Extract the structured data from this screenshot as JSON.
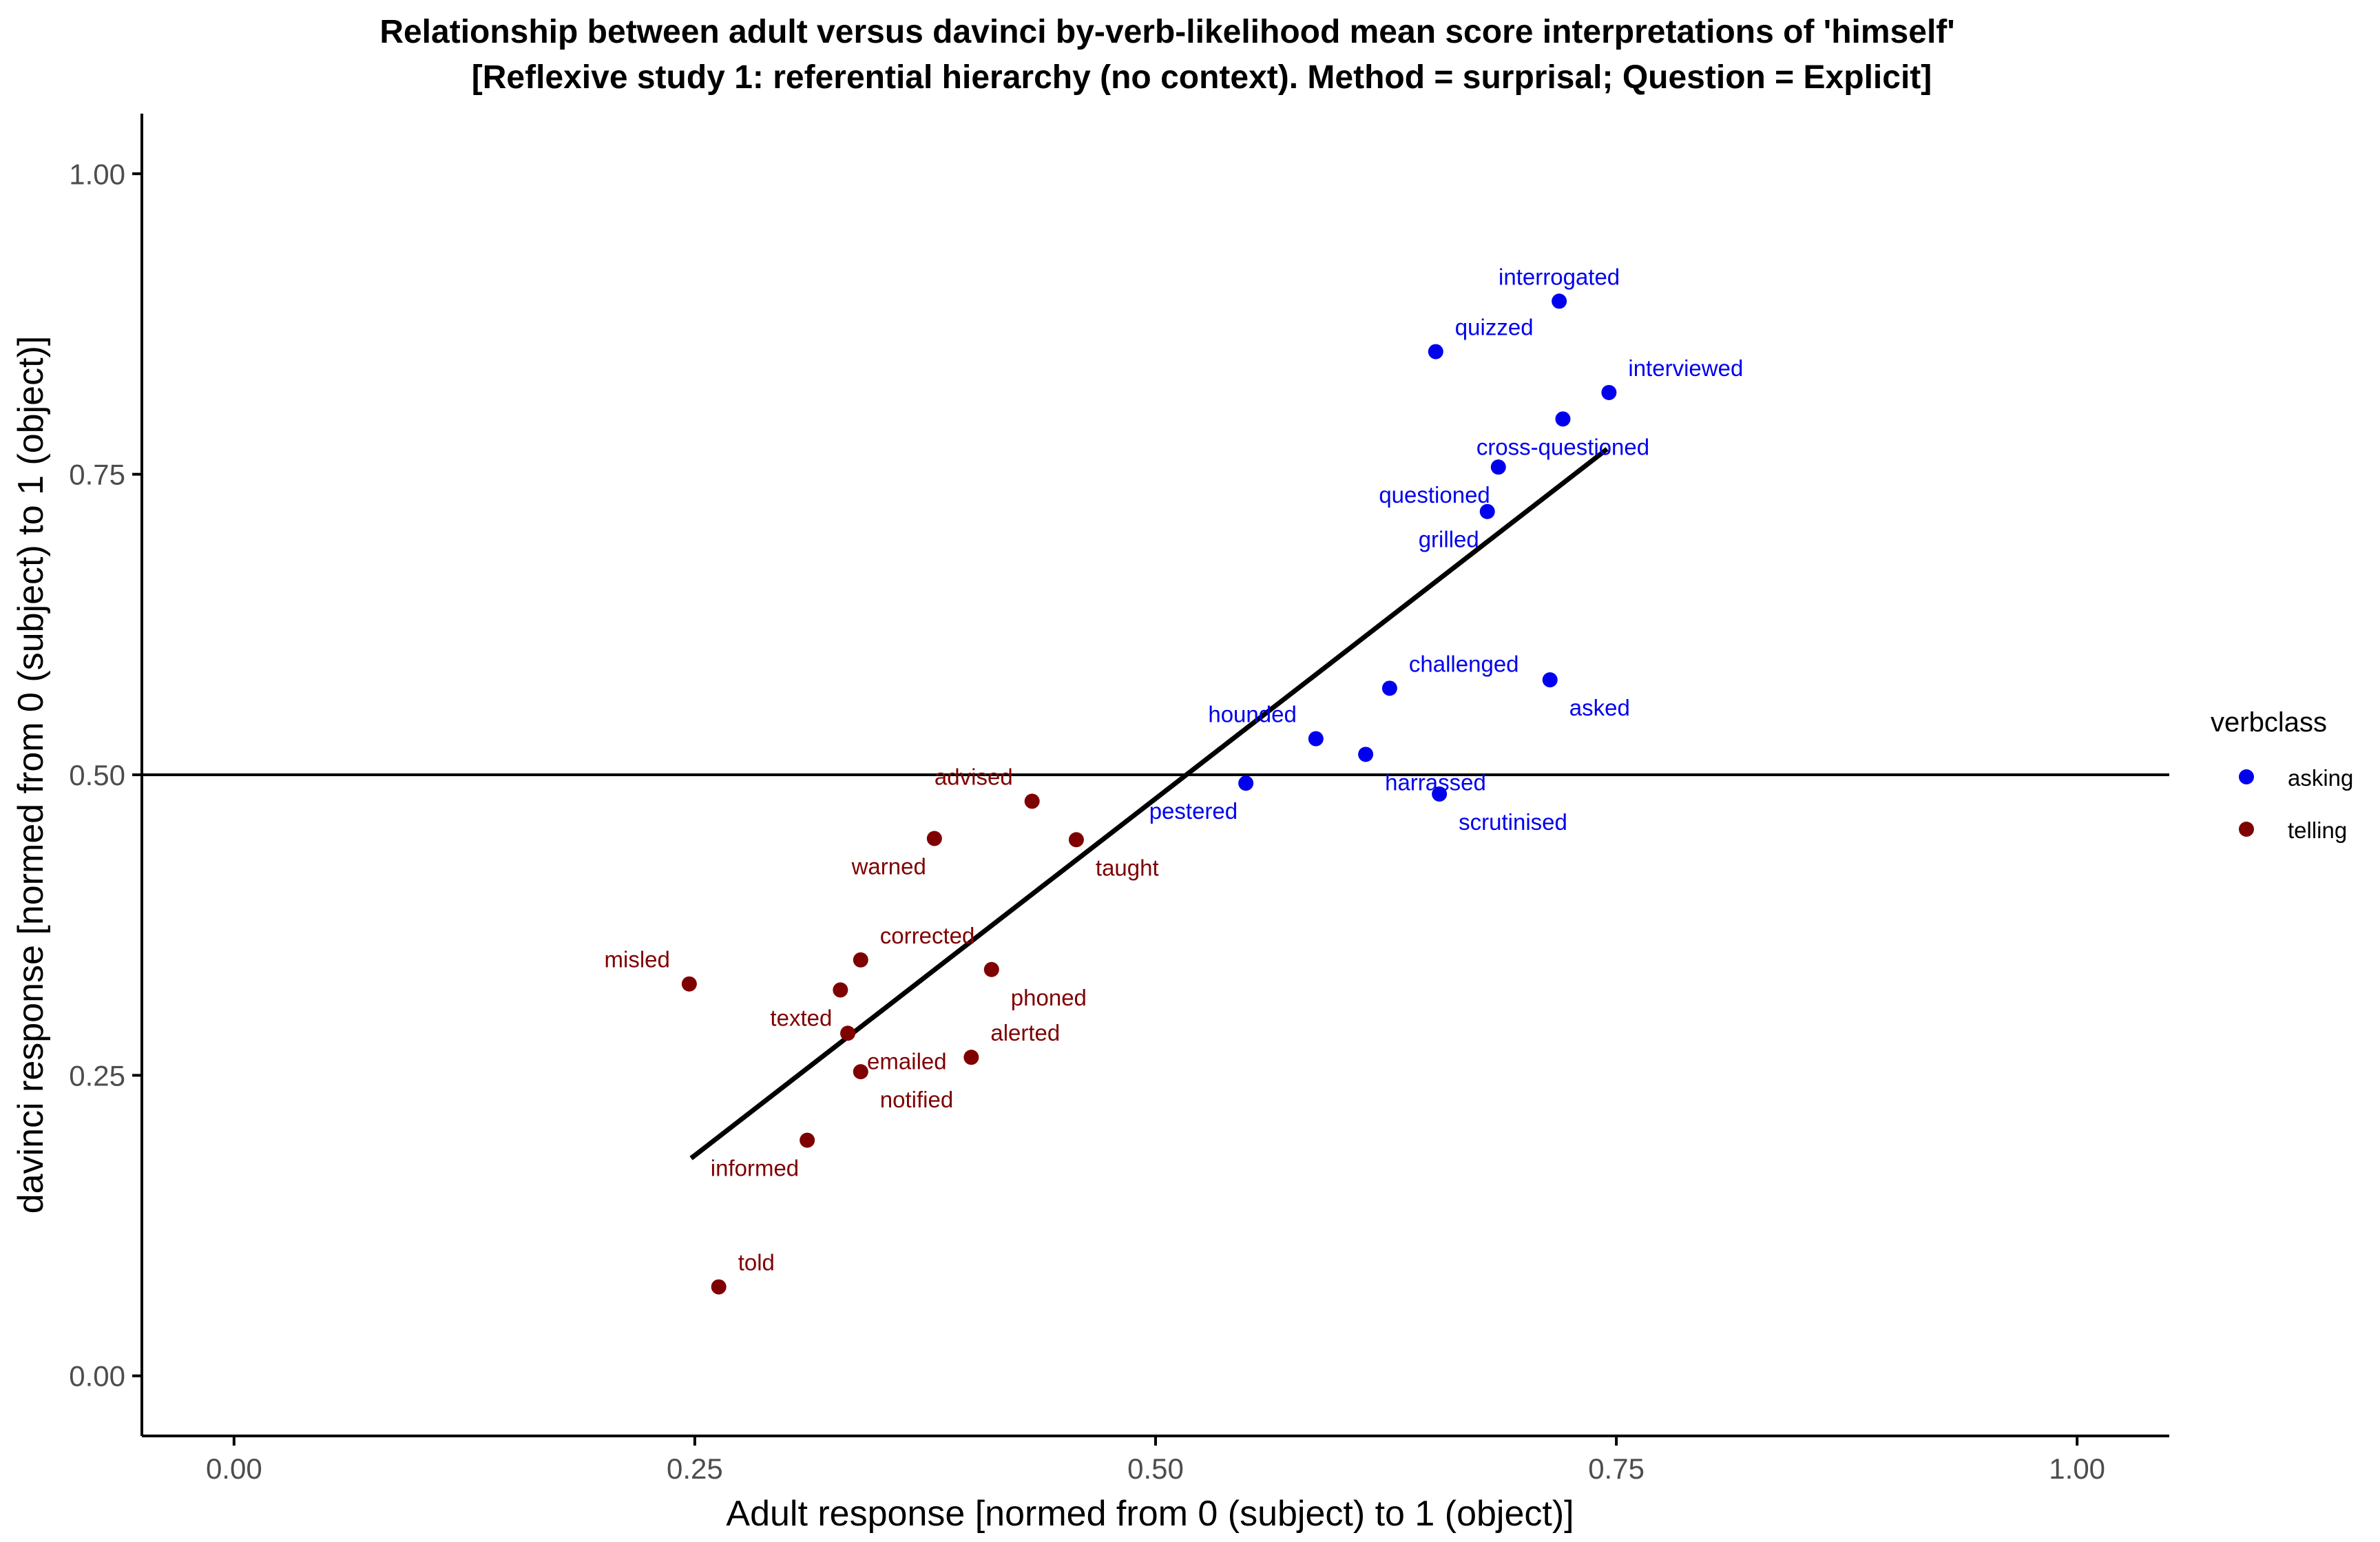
{
  "chart_data": {
    "type": "scatter",
    "title_line1": "Relationship between adult versus davinci by-verb-likelihood mean score interpretations of 'himself'",
    "title_line2": "[Reflexive study 1: referential hierarchy (no context). Method = surprisal; Question = Explicit]",
    "xlabel": "Adult response [normed from 0 (subject) to 1 (object)]",
    "ylabel": "davinci response [normed from 0 (subject) to 1 (object)]",
    "xlim": [
      -0.05,
      1.05
    ],
    "ylim": [
      -0.05,
      1.05
    ],
    "x_ticks": [
      0.0,
      0.25,
      0.5,
      0.75,
      1.0
    ],
    "y_ticks": [
      0.0,
      0.25,
      0.5,
      0.75,
      1.0
    ],
    "x_tick_labels": [
      "0.00",
      "0.25",
      "0.50",
      "0.75",
      "1.00"
    ],
    "y_tick_labels": [
      "0.00",
      "0.25",
      "0.50",
      "0.75",
      "1.00"
    ],
    "hline_y": 0.5,
    "fit_line": {
      "x1": 0.248,
      "y1": 0.181,
      "x2": 0.745,
      "y2": 0.771
    },
    "grid": false,
    "legend": {
      "title": "verbclass",
      "position": "right",
      "entries": [
        {
          "name": "asking",
          "color": "#0000ee"
        },
        {
          "name": "telling",
          "color": "#7f0000"
        }
      ]
    },
    "series": [
      {
        "name": "asking",
        "color": "#0000ee",
        "points": [
          {
            "label": "interrogated",
            "x": 0.719,
            "y": 0.894,
            "lp": "above"
          },
          {
            "label": "quizzed",
            "x": 0.652,
            "y": 0.852,
            "lp": "above-right"
          },
          {
            "label": "interviewed",
            "x": 0.746,
            "y": 0.818,
            "lp": "above-right"
          },
          {
            "label": "cross-questioned",
            "x": 0.721,
            "y": 0.796,
            "lp": "below"
          },
          {
            "label": "questioned",
            "x": 0.686,
            "y": 0.756,
            "lp": "below-left"
          },
          {
            "label": "grilled",
            "x": 0.68,
            "y": 0.719,
            "lp": "below-left"
          },
          {
            "label": "challenged",
            "x": 0.627,
            "y": 0.572,
            "lp": "above-right"
          },
          {
            "label": "asked",
            "x": 0.714,
            "y": 0.579,
            "lp": "below-right"
          },
          {
            "label": "hounded",
            "x": 0.587,
            "y": 0.53,
            "lp": "above-left"
          },
          {
            "label": "harrassed",
            "x": 0.614,
            "y": 0.517,
            "lp": "below-right"
          },
          {
            "label": "pestered",
            "x": 0.549,
            "y": 0.493,
            "lp": "below-left"
          },
          {
            "label": "scrutinised",
            "x": 0.654,
            "y": 0.484,
            "lp": "below-right"
          }
        ]
      },
      {
        "name": "telling",
        "color": "#7f0000",
        "points": [
          {
            "label": "advised",
            "x": 0.433,
            "y": 0.478,
            "lp": "above-left"
          },
          {
            "label": "warned",
            "x": 0.38,
            "y": 0.447,
            "lp": "below-left"
          },
          {
            "label": "taught",
            "x": 0.457,
            "y": 0.446,
            "lp": "below-right"
          },
          {
            "label": "corrected",
            "x": 0.34,
            "y": 0.346,
            "lp": "above-right"
          },
          {
            "label": "phoned",
            "x": 0.411,
            "y": 0.338,
            "lp": "below-right"
          },
          {
            "label": "misled",
            "x": 0.247,
            "y": 0.326,
            "lp": "above-left"
          },
          {
            "label": "texted",
            "x": 0.329,
            "y": 0.321,
            "lp": "below-left"
          },
          {
            "label": "emailed",
            "x": 0.333,
            "y": 0.285,
            "lp": "below-right"
          },
          {
            "label": "alerted",
            "x": 0.4,
            "y": 0.265,
            "lp": "above-right"
          },
          {
            "label": "notified",
            "x": 0.34,
            "y": 0.253,
            "lp": "below-right"
          },
          {
            "label": "informed",
            "x": 0.311,
            "y": 0.196,
            "lp": "below-left"
          },
          {
            "label": "told",
            "x": 0.263,
            "y": 0.074,
            "lp": "above-right"
          }
        ]
      }
    ]
  }
}
